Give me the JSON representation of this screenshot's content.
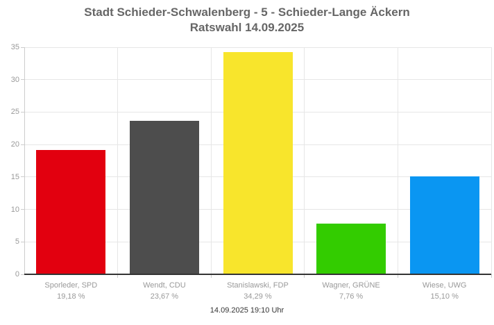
{
  "title": {
    "line1": "Stadt Schieder-Schwalenberg - 5 - Schieder-Lange Äckern",
    "line2": "Ratswahl 14.09.2025"
  },
  "footer": {
    "timestamp": "14.09.2025 19:10 Uhr"
  },
  "chart_data": {
    "type": "bar",
    "title": "Stadt Schieder-Schwalenberg - 5 - Schieder-Lange Äckern Ratswahl 14.09.2025",
    "categories": [
      "Sporleder, SPD",
      "Wendt, CDU",
      "Stanislawski, FDP",
      "Wagner, GRÜNE",
      "Wiese, UWG"
    ],
    "values": [
      19.18,
      23.67,
      34.29,
      7.76,
      15.1
    ],
    "value_labels": [
      "19,18 %",
      "23,67 %",
      "34,29 %",
      "7,76 %",
      "15,10 %"
    ],
    "bar_colors": [
      "#e2000f",
      "#4d4d4d",
      "#f8e52c",
      "#33cc00",
      "#0a96f2"
    ],
    "xlabel": "",
    "ylabel": "",
    "ylim": [
      0,
      35
    ],
    "yticks": [
      0,
      5,
      10,
      15,
      20,
      25,
      30,
      35
    ],
    "grid": true,
    "legend_position": "none"
  },
  "colors": {
    "background": "#ffffff",
    "title_text": "#666666",
    "axis_label_text": "#999999",
    "category_text": "#999999",
    "footer_text": "#333333",
    "gridline": "#e6e6e6",
    "tick_line": "#cccccc",
    "baseline": "#333333"
  }
}
